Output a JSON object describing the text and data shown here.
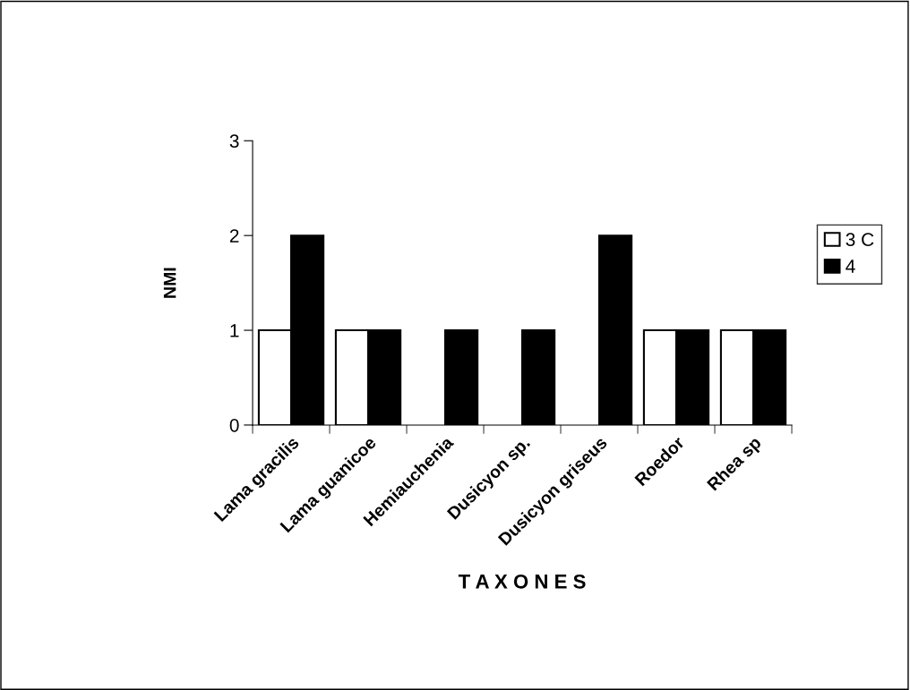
{
  "chart_data": {
    "type": "bar",
    "xlabel": "T A X O N E S",
    "ylabel": "NMI",
    "categories": [
      "Lama gracilis",
      "Lama guanicoe",
      "Hemiauchenia",
      "Dusicyon sp.",
      "Dusicyon griseus",
      "Roedor",
      "Rhea sp"
    ],
    "series": [
      {
        "name": "3 C",
        "color": "#ffffff",
        "values": [
          1,
          1,
          null,
          null,
          null,
          1,
          1
        ]
      },
      {
        "name": "4",
        "color": "#000000",
        "values": [
          2,
          1,
          1,
          1,
          2,
          1,
          1
        ]
      }
    ],
    "ylim": [
      0,
      3
    ],
    "yticks": [
      0,
      1,
      2,
      3
    ],
    "grid": false,
    "legend": "right"
  }
}
